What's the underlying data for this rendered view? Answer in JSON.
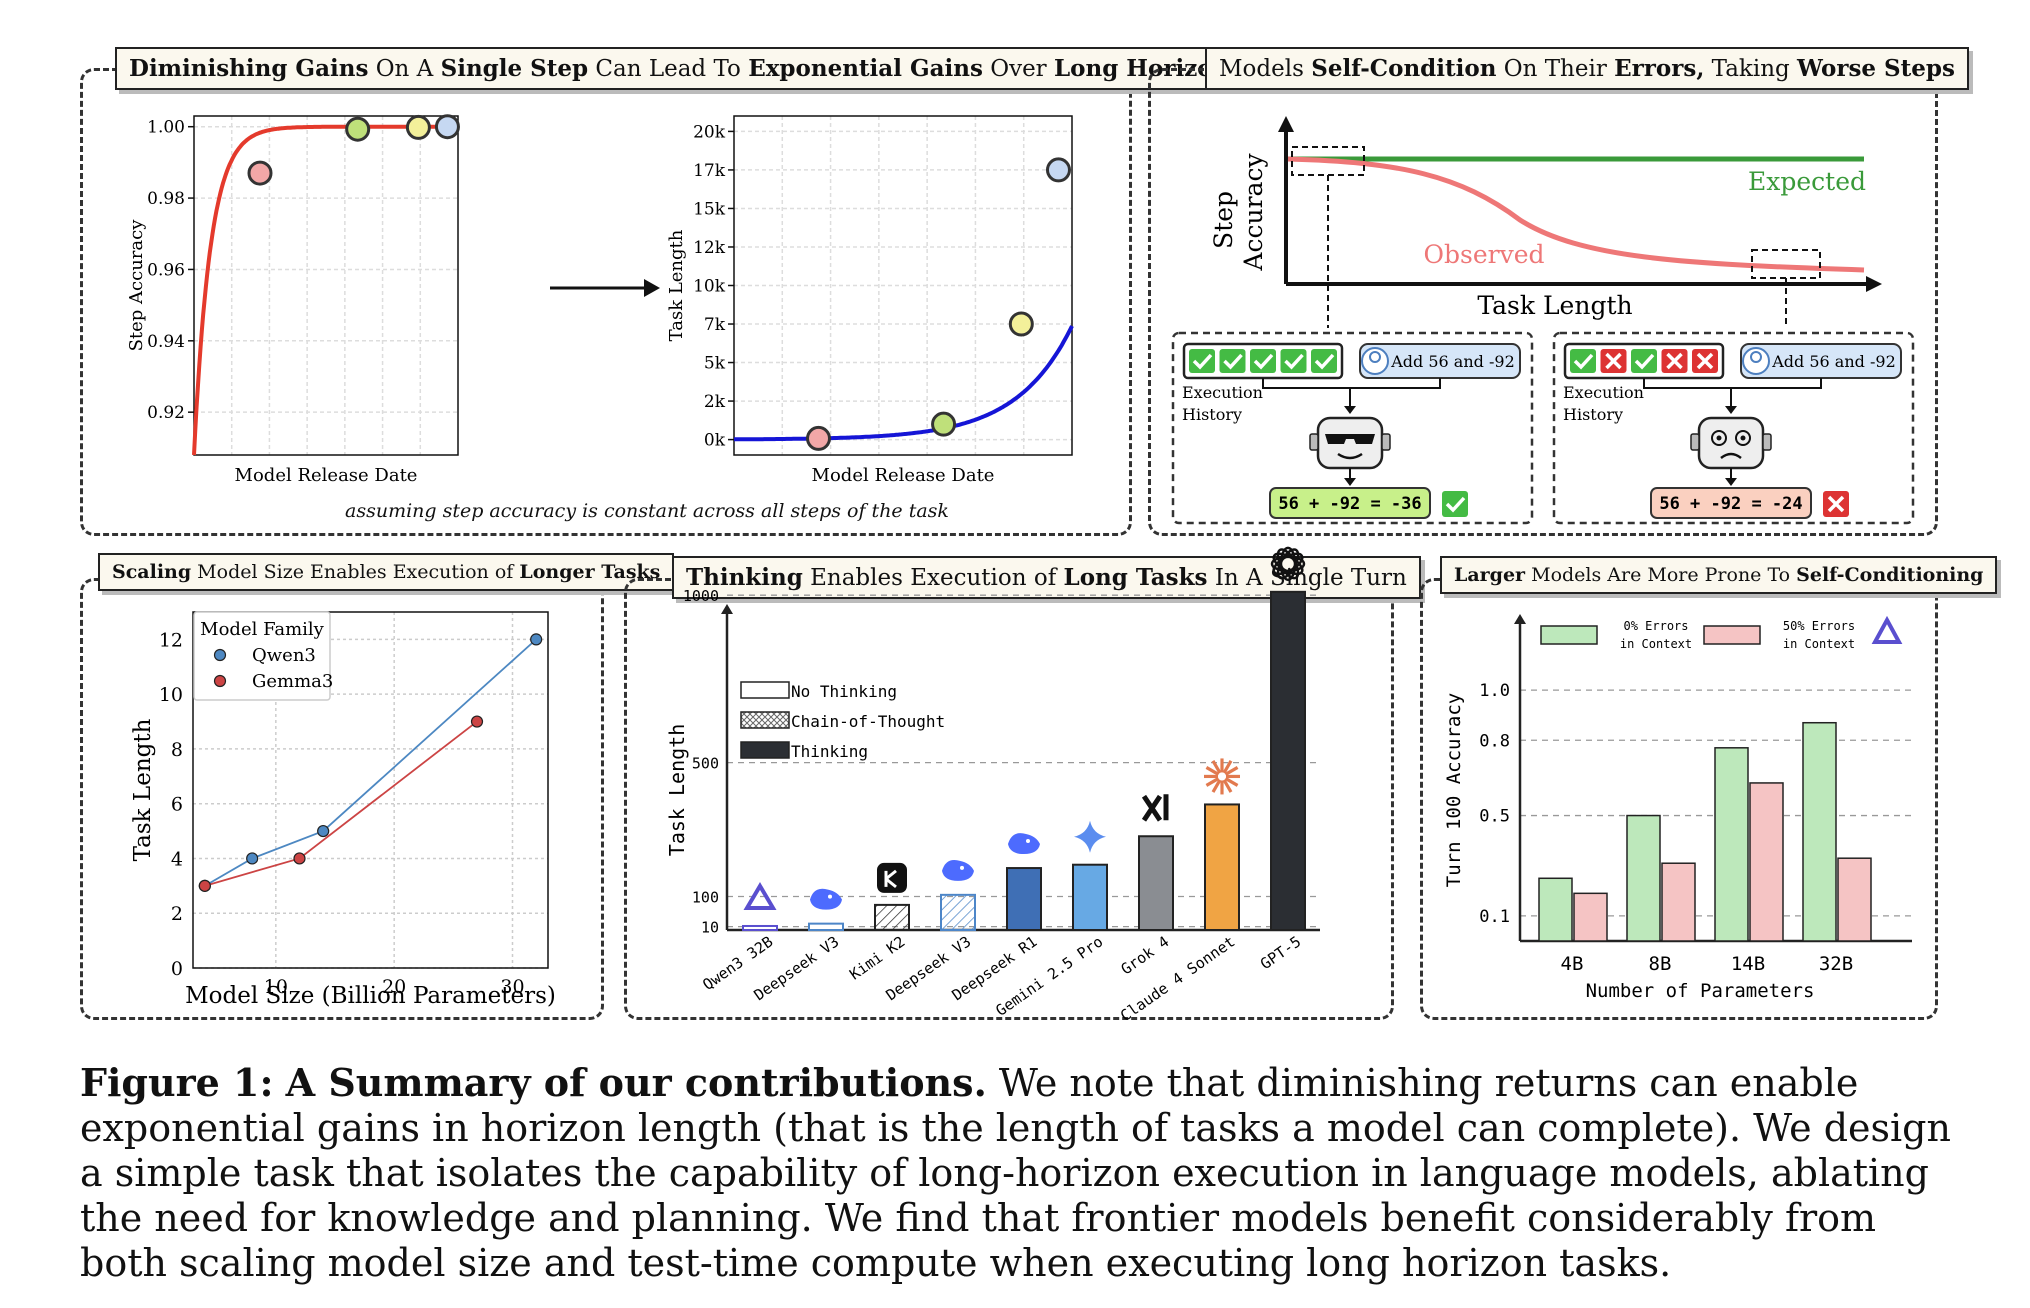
{
  "panels": {
    "top_left": {
      "title_parts": [
        {
          "t": "Diminishing Gains",
          "b": true
        },
        {
          "t": " On A ",
          "b": false
        },
        {
          "t": "Single Step",
          "b": true
        },
        {
          "t": " Can Lead To ",
          "b": false
        },
        {
          "t": "Exponential Gains",
          "b": true
        },
        {
          "t": " Over ",
          "b": false
        },
        {
          "t": "Long Horizon",
          "b": true
        }
      ],
      "note": "assuming step accuracy is constant across all steps of the task"
    },
    "top_right": {
      "title_parts": [
        {
          "t": "Models ",
          "b": false
        },
        {
          "t": "Self-Condition",
          "b": true
        },
        {
          "t": " On Their ",
          "b": false
        },
        {
          "t": "Errors,",
          "b": true
        },
        {
          "t": " Taking ",
          "b": false
        },
        {
          "t": "Worse Steps",
          "b": true
        }
      ],
      "ylabel_line1": "Step",
      "ylabel_line2": "Accuracy",
      "xlabel": "Task Length",
      "expected_label": "Expected",
      "observed_label": "Observed",
      "left_box": {
        "prompt": "Add 56 and -92",
        "history_line1": "Execution",
        "history_line2": "History",
        "result": "56 + -92 = -36",
        "history": [
          "ok",
          "ok",
          "ok",
          "ok",
          "ok"
        ],
        "correct": true
      },
      "right_box": {
        "prompt": "Add 56 and -92",
        "history_line1": "Execution",
        "history_line2": "History",
        "result": "56 + -92 = -24",
        "history": [
          "ok",
          "err",
          "ok",
          "err",
          "err"
        ],
        "correct": false
      },
      "colors": {
        "expected": "#3a9a3a",
        "observed": "#ee7777"
      }
    },
    "bottom_left": {
      "title_parts": [
        {
          "t": "Scaling",
          "b": true
        },
        {
          "t": " Model Size Enables Execution of ",
          "b": false
        },
        {
          "t": "Longer Tasks",
          "b": true
        }
      ]
    },
    "bottom_mid": {
      "title_parts": [
        {
          "t": "Thinking",
          "b": true
        },
        {
          "t": " Enables Execution of ",
          "b": false
        },
        {
          "t": "Long Tasks",
          "b": true
        },
        {
          "t": " In A Single Turn",
          "b": false
        }
      ]
    },
    "bottom_right": {
      "title_parts": [
        {
          "t": "Larger",
          "b": true
        },
        {
          "t": " Models Are More Prone To ",
          "b": false
        },
        {
          "t": "Self-Conditioning",
          "b": true
        }
      ]
    }
  },
  "chart_data": [
    {
      "id": "step_accuracy",
      "type": "line",
      "xlabel": "Model Release Date",
      "ylabel": "Step Accuracy",
      "ylim": [
        0.908,
        1.003
      ],
      "yticks": [
        0.92,
        0.94,
        0.96,
        0.98,
        1.0
      ],
      "ytick_labels": [
        "0.92",
        "0.94",
        "0.96",
        "0.98",
        "1.00"
      ],
      "curve_color": "#e43a2c",
      "points": [
        {
          "x": 0.25,
          "y": 0.987,
          "color": "#f2a7a7"
        },
        {
          "x": 0.62,
          "y": 0.9993,
          "color": "#bfe07a"
        },
        {
          "x": 0.85,
          "y": 0.9998,
          "color": "#f3f09a"
        },
        {
          "x": 0.96,
          "y": 1.0,
          "color": "#c6d8f2"
        }
      ]
    },
    {
      "id": "task_length",
      "type": "line",
      "xlabel": "Model Release Date",
      "ylabel": "Task Length",
      "ylim": [
        -1000,
        21000
      ],
      "yticks": [
        0,
        2500,
        5000,
        7500,
        10000,
        12500,
        15000,
        17500,
        20000
      ],
      "ytick_labels": [
        "0k",
        "2k",
        "5k",
        "7k",
        "10k",
        "12k",
        "15k",
        "17k",
        "20k"
      ],
      "curve_color": "#1515d6",
      "points": [
        {
          "x": 0.25,
          "y": 76,
          "color": "#f2a7a7"
        },
        {
          "x": 0.62,
          "y": 1000,
          "color": "#bfe07a"
        },
        {
          "x": 0.85,
          "y": 7500,
          "color": "#f3f09a"
        },
        {
          "x": 0.96,
          "y": 17500,
          "color": "#c6d8f2"
        }
      ]
    },
    {
      "id": "step_accuracy_trend",
      "type": "line",
      "series": [
        {
          "name": "Expected",
          "trend": "constant"
        },
        {
          "name": "Observed",
          "trend": "decreasing"
        }
      ]
    },
    {
      "id": "scaling",
      "type": "line",
      "xlabel": "Model Size (Billion Parameters)",
      "ylabel": "Task Length",
      "xlim": [
        3,
        33
      ],
      "ylim": [
        0,
        13
      ],
      "xticks": [
        10,
        20,
        30
      ],
      "yticks": [
        0,
        2,
        4,
        6,
        8,
        10,
        12
      ],
      "legend_title": "Model Family",
      "legend_position": "top-left",
      "series": [
        {
          "name": "Qwen3",
          "color": "#4d88c2",
          "x": [
            4,
            8,
            14,
            32
          ],
          "y": [
            3,
            4,
            5,
            12
          ]
        },
        {
          "name": "Gemma3",
          "color": "#cc4444",
          "x": [
            4,
            12,
            27
          ],
          "y": [
            3,
            4,
            9
          ]
        }
      ]
    },
    {
      "id": "thinking",
      "type": "bar",
      "ylabel": "Task Length",
      "ylim": [
        0,
        1120
      ],
      "yticks": [
        10,
        100,
        500,
        1000
      ],
      "legend": [
        "No Thinking",
        "Chain-of-Thought",
        "Thinking"
      ],
      "categories": [
        "Qwen3 32B",
        "Deepseek V3",
        "Kimi K2",
        "Deepseek V3",
        "Deepseek R1",
        "Gemini 2.5 Pro",
        "Grok 4",
        "Claude 4 Sonnet",
        "GPT-5"
      ],
      "values": [
        12,
        19,
        75,
        105,
        185,
        195,
        280,
        375,
        1010
      ],
      "modes": [
        "none",
        "none",
        "cot",
        "cot",
        "think",
        "think",
        "think",
        "think",
        "think"
      ],
      "colors": [
        "#ffffff",
        "#ffffff",
        "#ffffff",
        "#ffffff",
        "#3f6fb5",
        "#67a9e4",
        "#8a8d92",
        "#f0a444",
        "#2b2e33"
      ],
      "icons": [
        "qwen",
        "whale",
        "kimi",
        "whale",
        "whale",
        "gemini",
        "xai",
        "claude",
        "openai"
      ]
    },
    {
      "id": "self_conditioning",
      "type": "bar",
      "xlabel": "Number of Parameters",
      "ylabel": "Turn 100 Accuracy",
      "ylim": [
        0,
        1.12
      ],
      "yticks": [
        0.1,
        0.5,
        0.8,
        1.0
      ],
      "ytick_labels": [
        "0.1",
        "0.5",
        "0.8",
        "1.0"
      ],
      "categories": [
        "4B",
        "8B",
        "14B",
        "32B"
      ],
      "series": [
        {
          "name": "0% Errors in Context",
          "line1": "0% Errors",
          "line2": "in Context",
          "color": "#bde8bb",
          "values": [
            0.25,
            0.5,
            0.77,
            0.87
          ]
        },
        {
          "name": "50% Errors in Context",
          "line1": "50% Errors",
          "line2": "in Context",
          "color": "#f5c4c4",
          "values": [
            0.19,
            0.31,
            0.63,
            0.33
          ]
        }
      ]
    }
  ],
  "caption": {
    "label": "Figure 1:",
    "heading": "A Summary of our contributions.",
    "text": "We note that diminishing returns can enable exponential gains in horizon length (that is the length of tasks a model can complete). We design a simple task that isolates the capability of long-horizon execution in language models, ablating the need for knowledge and planning. We find that frontier models benefit considerably from both scaling model size and test-time compute when executing long horizon tasks."
  }
}
